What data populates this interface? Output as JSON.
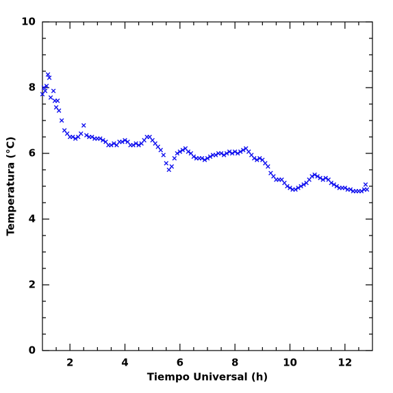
{
  "chart_data": {
    "type": "scatter",
    "x_label": "Tiempo Universal (h)",
    "y_label": "Temperatura (°C)",
    "xlim": [
      1,
      13
    ],
    "ylim": [
      0,
      10
    ],
    "xticks": [
      2,
      4,
      6,
      8,
      10,
      12
    ],
    "yticks": [
      0,
      2,
      4,
      6,
      8,
      10
    ],
    "xminorticks": [
      1.5,
      2.5,
      3,
      3.5,
      4.5,
      5,
      5.5,
      6.5,
      7,
      7.5,
      8.5,
      9,
      9.5,
      10.5,
      11,
      11.5,
      12.5
    ],
    "yminorticks": [
      0.5,
      1,
      1.5,
      2.5,
      3,
      3.5,
      4.5,
      5,
      5.5,
      6.5,
      7,
      7.5,
      8.5,
      9,
      9.5
    ],
    "grid": false,
    "series": [
      {
        "color": "#1010ee",
        "x": [
          1.0,
          1.05,
          1.1,
          1.15,
          1.2,
          1.25,
          1.3,
          1.4,
          1.45,
          1.5,
          1.55,
          1.6,
          1.7,
          1.8,
          1.9,
          2.0,
          2.1,
          2.2,
          2.3,
          2.4,
          2.5,
          2.6,
          2.7,
          2.8,
          2.9,
          3.0,
          3.1,
          3.2,
          3.3,
          3.4,
          3.5,
          3.6,
          3.7,
          3.8,
          3.9,
          4.0,
          4.1,
          4.2,
          4.3,
          4.4,
          4.5,
          4.6,
          4.7,
          4.8,
          4.9,
          5.0,
          5.1,
          5.2,
          5.3,
          5.4,
          5.5,
          5.6,
          5.7,
          5.8,
          5.9,
          6.0,
          6.1,
          6.2,
          6.3,
          6.4,
          6.5,
          6.6,
          6.7,
          6.8,
          6.9,
          7.0,
          7.1,
          7.2,
          7.3,
          7.4,
          7.5,
          7.6,
          7.7,
          7.8,
          7.9,
          8.0,
          8.1,
          8.2,
          8.3,
          8.4,
          8.5,
          8.6,
          8.7,
          8.8,
          8.9,
          9.0,
          9.1,
          9.2,
          9.3,
          9.4,
          9.5,
          9.6,
          9.7,
          9.8,
          9.9,
          10.0,
          10.1,
          10.2,
          10.3,
          10.4,
          10.5,
          10.6,
          10.7,
          10.8,
          10.9,
          11.0,
          11.1,
          11.2,
          11.3,
          11.4,
          11.5,
          11.6,
          11.7,
          11.8,
          11.9,
          12.0,
          12.1,
          12.2,
          12.3,
          12.4,
          12.5,
          12.6,
          12.7,
          12.75,
          12.8
        ],
        "values": [
          7.8,
          8.0,
          7.9,
          8.05,
          8.4,
          8.3,
          7.7,
          7.9,
          7.6,
          7.4,
          7.6,
          7.3,
          7.0,
          6.7,
          6.6,
          6.5,
          6.5,
          6.45,
          6.5,
          6.6,
          6.85,
          6.55,
          6.5,
          6.5,
          6.45,
          6.45,
          6.45,
          6.4,
          6.35,
          6.25,
          6.25,
          6.3,
          6.25,
          6.35,
          6.35,
          6.4,
          6.35,
          6.25,
          6.25,
          6.3,
          6.25,
          6.3,
          6.4,
          6.5,
          6.5,
          6.4,
          6.3,
          6.2,
          6.1,
          5.95,
          5.7,
          5.5,
          5.6,
          5.85,
          6.0,
          6.05,
          6.1,
          6.15,
          6.05,
          6.0,
          5.9,
          5.85,
          5.85,
          5.85,
          5.8,
          5.85,
          5.9,
          5.95,
          5.95,
          6.0,
          6.0,
          5.95,
          6.0,
          6.05,
          6.0,
          6.05,
          6.0,
          6.05,
          6.1,
          6.15,
          6.05,
          5.95,
          5.85,
          5.8,
          5.85,
          5.8,
          5.7,
          5.6,
          5.4,
          5.3,
          5.2,
          5.2,
          5.2,
          5.1,
          5.0,
          4.95,
          4.9,
          4.9,
          4.95,
          5.0,
          5.05,
          5.1,
          5.2,
          5.3,
          5.35,
          5.3,
          5.25,
          5.2,
          5.25,
          5.2,
          5.1,
          5.05,
          5.0,
          4.95,
          4.95,
          4.95,
          4.9,
          4.9,
          4.85,
          4.85,
          4.85,
          4.85,
          4.9,
          5.05,
          4.9
        ]
      }
    ]
  }
}
